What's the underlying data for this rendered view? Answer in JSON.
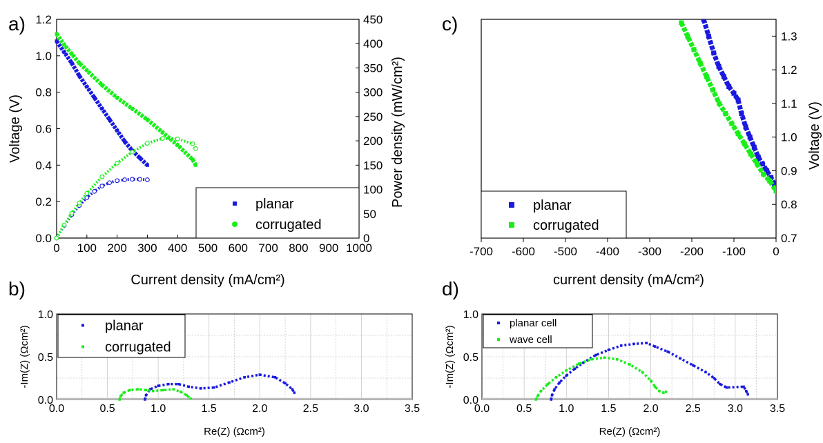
{
  "colors": {
    "planar": "#1a1adf",
    "corrugated": "#19ee19",
    "grid": "#c8c8c8"
  },
  "panels": {
    "a": "a)",
    "b": "b)",
    "c": "c)",
    "d": "d)"
  },
  "chart_data": [
    {
      "id": "a",
      "type": "scatter",
      "xlabel": "Current density (mA/cm²)",
      "ylabel": "Voltage (V)",
      "y2label": "Power density (mW/cm²)",
      "xlim": [
        0,
        1000
      ],
      "ylim": [
        0,
        1.2
      ],
      "y2lim": [
        0,
        450
      ],
      "xticks": [
        "0",
        "100",
        "200",
        "300",
        "400",
        "500",
        "600",
        "700",
        "800",
        "900",
        "1000"
      ],
      "yticks": [
        "0.0",
        "0.2",
        "0.4",
        "0.6",
        "0.8",
        "1.0",
        "1.2"
      ],
      "y2ticks": [
        "0",
        "50",
        "100",
        "150",
        "200",
        "250",
        "300",
        "350",
        "400",
        "450"
      ],
      "legend": [
        "planar",
        "corrugated"
      ],
      "legend_position": "bottom-right",
      "series": [
        {
          "name": "planar",
          "axis": "voltage",
          "marker": "filled-square",
          "x": [
            0,
            25,
            50,
            75,
            100,
            125,
            150,
            175,
            200,
            225,
            250,
            275,
            300
          ],
          "y": [
            1.08,
            1.02,
            0.96,
            0.89,
            0.83,
            0.77,
            0.71,
            0.65,
            0.59,
            0.53,
            0.48,
            0.44,
            0.4
          ]
        },
        {
          "name": "corrugated",
          "axis": "voltage",
          "marker": "filled-square",
          "x": [
            0,
            25,
            50,
            75,
            100,
            150,
            200,
            250,
            300,
            350,
            400,
            450,
            460
          ],
          "y": [
            1.12,
            1.06,
            1.01,
            0.96,
            0.92,
            0.84,
            0.77,
            0.71,
            0.65,
            0.58,
            0.51,
            0.43,
            0.4
          ]
        },
        {
          "name": "planar",
          "axis": "power",
          "marker": "open-circle",
          "x": [
            0,
            25,
            50,
            75,
            100,
            125,
            150,
            175,
            200,
            225,
            250,
            275,
            300
          ],
          "y": [
            0,
            26,
            48,
            67,
            83,
            96,
            107,
            114,
            118,
            120,
            121,
            121,
            120
          ]
        },
        {
          "name": "corrugated",
          "axis": "power",
          "marker": "open-circle",
          "x": [
            0,
            25,
            50,
            75,
            100,
            150,
            200,
            250,
            300,
            350,
            400,
            450,
            460
          ],
          "y": [
            0,
            27,
            51,
            72,
            92,
            126,
            154,
            177,
            195,
            205,
            204,
            194,
            184
          ]
        }
      ]
    },
    {
      "id": "b",
      "type": "scatter",
      "xlabel": "Re(Z) (Ωcm²)",
      "ylabel": "-Im(Z) (Ωcm²)",
      "xlim": [
        0,
        3.5
      ],
      "ylim": [
        0,
        1.0
      ],
      "xticks": [
        "0.0",
        "0.5",
        "1.0",
        "1.5",
        "2.0",
        "2.5",
        "3.0",
        "3.5"
      ],
      "yticks": [
        "0.0",
        "0.5",
        "1.0"
      ],
      "legend": [
        "planar",
        "corrugated"
      ],
      "legend_position": "top-left",
      "series": [
        {
          "name": "planar",
          "x": [
            0.87,
            0.88,
            0.92,
            1.0,
            1.1,
            1.2,
            1.3,
            1.42,
            1.55,
            1.7,
            1.85,
            2.0,
            2.15,
            2.25,
            2.32,
            2.34
          ],
          "y": [
            0.0,
            0.05,
            0.12,
            0.16,
            0.18,
            0.18,
            0.15,
            0.13,
            0.14,
            0.2,
            0.26,
            0.29,
            0.26,
            0.19,
            0.12,
            0.08
          ]
        },
        {
          "name": "corrugated",
          "x": [
            0.62,
            0.63,
            0.66,
            0.72,
            0.8,
            0.88,
            0.95,
            1.05,
            1.15,
            1.22,
            1.28,
            1.32
          ],
          "y": [
            0.0,
            0.04,
            0.08,
            0.11,
            0.12,
            0.11,
            0.1,
            0.11,
            0.12,
            0.09,
            0.05,
            0.01
          ]
        }
      ]
    },
    {
      "id": "c",
      "type": "scatter",
      "xlabel": "current density (mA/cm²)",
      "ylabel": "Voltage (V)",
      "xlim": [
        -700,
        0
      ],
      "ylim": [
        0.7,
        1.35
      ],
      "xticks": [
        "-700",
        "-600",
        "-500",
        "-400",
        "-300",
        "-200",
        "-100",
        "0"
      ],
      "yticks": [
        "0.7",
        "0.8",
        "0.9",
        "1.0",
        "1.1",
        "1.2",
        "1.3"
      ],
      "legend": [
        "planar",
        "corrugated"
      ],
      "legend_position": "bottom-left",
      "series": [
        {
          "name": "planar",
          "x": [
            -172,
            -160,
            -148,
            -136,
            -124,
            -112,
            -100,
            -90,
            -82,
            -72,
            -62,
            -52,
            -42,
            -32,
            -22,
            -12,
            -4,
            0
          ],
          "y": [
            1.35,
            1.3,
            1.25,
            1.21,
            1.18,
            1.15,
            1.13,
            1.11,
            1.07,
            1.03,
            1.0,
            0.97,
            0.94,
            0.92,
            0.9,
            0.88,
            0.86,
            0.85
          ]
        },
        {
          "name": "corrugated",
          "x": [
            -225,
            -210,
            -195,
            -180,
            -165,
            -150,
            -135,
            -120,
            -105,
            -90,
            -75,
            -60,
            -45,
            -30,
            -15,
            0
          ],
          "y": [
            1.34,
            1.3,
            1.26,
            1.22,
            1.18,
            1.14,
            1.1,
            1.07,
            1.04,
            1.01,
            0.98,
            0.95,
            0.92,
            0.89,
            0.87,
            0.84
          ]
        }
      ]
    },
    {
      "id": "d",
      "type": "scatter",
      "xlabel": "Re(Z) (Ωcm²)",
      "ylabel": "-Im(Z) (Ωcm²)",
      "xlim": [
        0,
        3.5
      ],
      "ylim": [
        0,
        1.0
      ],
      "xticks": [
        "0.0",
        "0.5",
        "1.0",
        "1.5",
        "2.0",
        "2.5",
        "3.0",
        "3.5"
      ],
      "yticks": [
        "0.0",
        "0.5",
        "1.0"
      ],
      "legend": [
        "planar cell",
        "wave cell"
      ],
      "legend_position": "top-left",
      "series": [
        {
          "name": "planar cell",
          "x": [
            0.82,
            0.83,
            0.86,
            0.92,
            1.0,
            1.1,
            1.2,
            1.35,
            1.5,
            1.65,
            1.8,
            1.95,
            2.05,
            2.2,
            2.35,
            2.5,
            2.65,
            2.75,
            2.82,
            2.88,
            2.9,
            3.1,
            3.13,
            3.15
          ],
          "y": [
            0.0,
            0.05,
            0.12,
            0.2,
            0.28,
            0.36,
            0.43,
            0.52,
            0.58,
            0.63,
            0.65,
            0.66,
            0.62,
            0.56,
            0.48,
            0.4,
            0.32,
            0.25,
            0.18,
            0.15,
            0.14,
            0.15,
            0.1,
            0.06
          ]
        },
        {
          "name": "wave cell",
          "x": [
            0.64,
            0.66,
            0.7,
            0.78,
            0.88,
            1.0,
            1.15,
            1.3,
            1.45,
            1.6,
            1.75,
            1.9,
            2.0,
            2.05,
            2.1,
            2.15,
            2.18
          ],
          "y": [
            0.0,
            0.04,
            0.1,
            0.18,
            0.26,
            0.34,
            0.42,
            0.47,
            0.49,
            0.47,
            0.41,
            0.32,
            0.22,
            0.15,
            0.1,
            0.08,
            0.09
          ]
        }
      ]
    }
  ]
}
